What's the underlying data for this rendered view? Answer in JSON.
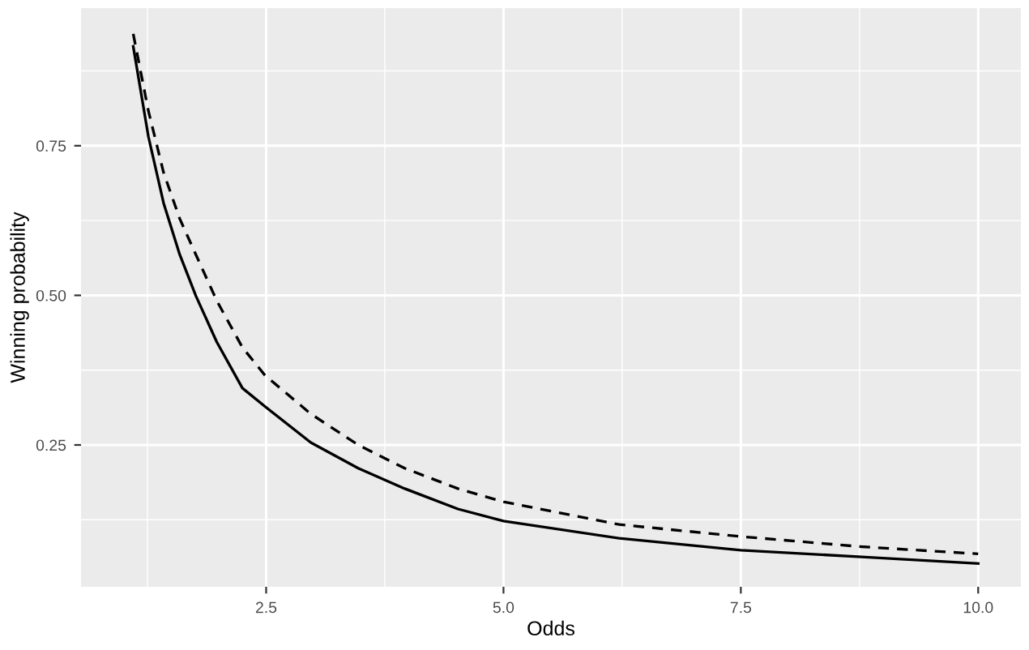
{
  "chart_data": {
    "type": "line",
    "xlabel": "Odds",
    "ylabel": "Winning probability",
    "xlim": [
      0.55,
      10.45
    ],
    "ylim": [
      0.013,
      0.98
    ],
    "xticks": [
      {
        "value": 2.5,
        "label": "2.5"
      },
      {
        "value": 5,
        "label": "5.0"
      },
      {
        "value": 7.5,
        "label": "7.5"
      },
      {
        "value": 10,
        "label": "10.0"
      }
    ],
    "yticks": [
      0.25,
      {
        "value": 0.5,
        "label": "0.50"
      },
      0.75
    ],
    "grid": true,
    "legend": false,
    "marker": "none",
    "series": [
      {
        "color": "#000000",
        "line_style": "solid",
        "x": [
          1.1,
          1.26,
          1.42,
          1.59,
          1.76,
          1.98,
          2.25,
          2.49,
          2.97,
          3.47,
          3.96,
          4.52,
          5.0,
          6.22,
          7.5,
          8.77,
          10.0
        ],
        "values": [
          0.916,
          0.765,
          0.654,
          0.568,
          0.499,
          0.422,
          0.345,
          0.314,
          0.254,
          0.211,
          0.177,
          0.143,
          0.123,
          0.094,
          0.074,
          0.063,
          0.052
        ]
      },
      {
        "color": "#000000",
        "line_style": "dashed",
        "x": [
          1.1,
          1.26,
          1.42,
          1.59,
          1.76,
          1.98,
          2.25,
          2.49,
          2.97,
          3.47,
          3.96,
          4.52,
          5.0,
          6.22,
          7.5,
          8.77,
          10.0
        ],
        "values": [
          0.937,
          0.808,
          0.705,
          0.628,
          0.568,
          0.491,
          0.413,
          0.366,
          0.302,
          0.25,
          0.211,
          0.177,
          0.155,
          0.117,
          0.097,
          0.08,
          0.068
        ]
      }
    ]
  }
}
